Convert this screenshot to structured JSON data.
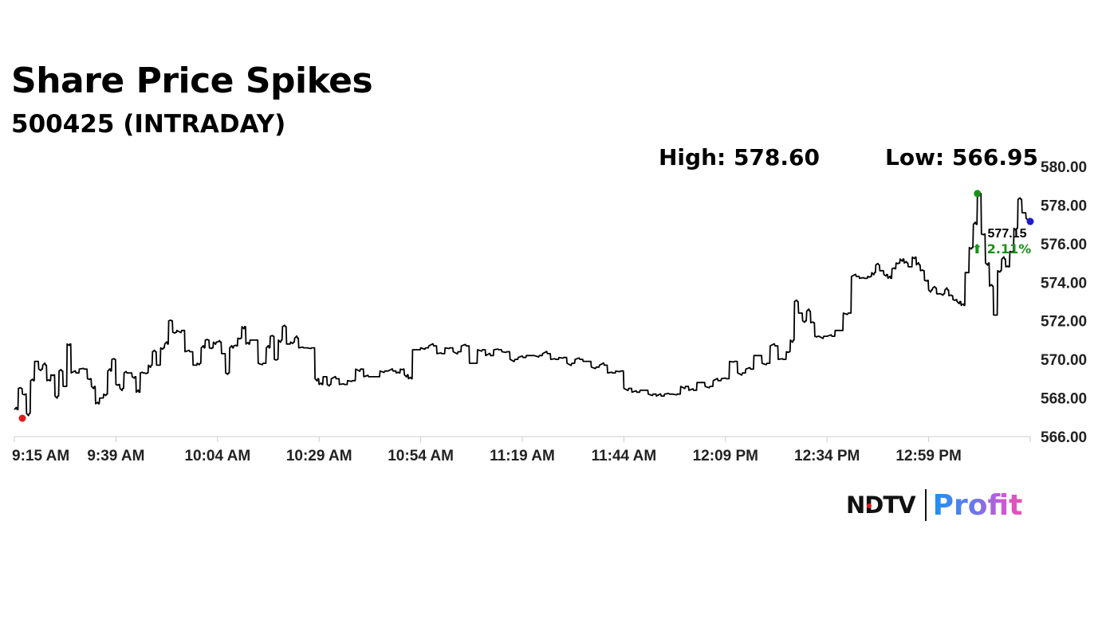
{
  "header": {
    "title": "Share Price Spikes",
    "subtitle": "500425 (INTRADAY)",
    "high_label": "High: 578.60",
    "low_label": "Low: 566.95"
  },
  "annotation": {
    "last_price": "577.15",
    "change": "⬆ 2.11%"
  },
  "brand": {
    "left": "NDTV",
    "right": "Profit"
  },
  "colors": {
    "line": "#000000",
    "high_marker": "#1a8f1a",
    "low_marker": "#e01b1b",
    "last_marker": "#1c1ccf",
    "change_text": "#1a8f1a",
    "axis": "#cccccc"
  },
  "chart_data": {
    "type": "line",
    "x_tick_labels": [
      "9:15 AM",
      "9:39 AM",
      "10:04 AM",
      "10:29 AM",
      "10:54 AM",
      "11:19 AM",
      "11:44 AM",
      "12:09 PM",
      "12:34 PM",
      "12:59 PM"
    ],
    "y_tick_labels": [
      "566.00",
      "568.00",
      "570.00",
      "572.00",
      "574.00",
      "576.00",
      "578.00",
      "580.00"
    ],
    "ylim": [
      566,
      580
    ],
    "xlim_minutes_after_915": [
      0,
      250
    ],
    "grid": false,
    "y_axis_side": "right",
    "series": [
      {
        "x": [
          0,
          1,
          2,
          3,
          4,
          5,
          6,
          7,
          8,
          9,
          10,
          11,
          12,
          13,
          14,
          16,
          18,
          19,
          20,
          21,
          22,
          23,
          24,
          25,
          26,
          27,
          28,
          29,
          30,
          31,
          32,
          33,
          34,
          35,
          36,
          37,
          38,
          39,
          40,
          42,
          44,
          45,
          46,
          47,
          48,
          49,
          50,
          51,
          52,
          53,
          54,
          55,
          56,
          57,
          58,
          60,
          62,
          63,
          64,
          65,
          66,
          67,
          68,
          69,
          70,
          72,
          74,
          75,
          76,
          77,
          78,
          80,
          82,
          84,
          86,
          88,
          90,
          92,
          94,
          95,
          96,
          97,
          98,
          100,
          102,
          104,
          106,
          108,
          110,
          112,
          114,
          116,
          118,
          120,
          122,
          124,
          126,
          128,
          130,
          132,
          134,
          136,
          138,
          140,
          142,
          144,
          146,
          148,
          150,
          152,
          154,
          156,
          158,
          160,
          162,
          164,
          166,
          168,
          170,
          172,
          174,
          176,
          178,
          180,
          182,
          184,
          186,
          188,
          190,
          191,
          192,
          193,
          194,
          195,
          196,
          197,
          198,
          200,
          202,
          204,
          206,
          208,
          210,
          211,
          212,
          213,
          214,
          215,
          216,
          217,
          218,
          219,
          220,
          221,
          222,
          223,
          224,
          225,
          226,
          227,
          228,
          229,
          230,
          231,
          232,
          233,
          234,
          235,
          236,
          237,
          238,
          239,
          240,
          241,
          242,
          243,
          244,
          245,
          246,
          247,
          248,
          249,
          250
        ],
        "y": [
          567.4,
          568.5,
          568.2,
          567.2,
          568.9,
          569.9,
          569.5,
          569.7,
          568.9,
          569.2,
          568.1,
          569.4,
          568.6,
          570.8,
          569.3,
          569.5,
          569.0,
          568.6,
          567.7,
          568.0,
          568.2,
          569.4,
          570.0,
          568.7,
          568.5,
          569.3,
          569.3,
          569.1,
          568.3,
          569.3,
          569.3,
          569.7,
          570.4,
          569.7,
          570.6,
          570.8,
          572.0,
          571.4,
          571.5,
          570.4,
          569.7,
          569.8,
          570.6,
          571.0,
          570.6,
          570.9,
          570.9,
          570.3,
          569.3,
          570.6,
          570.7,
          571.1,
          571.7,
          570.8,
          571.0,
          569.8,
          570.6,
          571.2,
          570.0,
          571.0,
          571.7,
          570.8,
          570.9,
          571.1,
          570.6,
          570.6,
          569.0,
          568.7,
          569.1,
          568.7,
          569.0,
          568.7,
          568.9,
          569.5,
          569.1,
          569.1,
          569.4,
          569.4,
          569.3,
          569.5,
          569.2,
          569.0,
          570.5,
          570.6,
          570.7,
          570.3,
          570.6,
          570.4,
          570.7,
          569.8,
          570.5,
          570.2,
          570.5,
          570.4,
          570.0,
          570.1,
          570.2,
          570.2,
          570.3,
          570.0,
          570.1,
          569.8,
          570.0,
          569.9,
          569.6,
          569.7,
          569.3,
          569.4,
          568.5,
          568.3,
          568.4,
          568.2,
          568.1,
          568.2,
          568.2,
          568.6,
          568.4,
          568.8,
          568.6,
          568.9,
          569.0,
          569.9,
          569.3,
          569.5,
          570.2,
          569.8,
          570.7,
          570.0,
          570.4,
          571.0,
          573.0,
          572.4,
          572.0,
          572.5,
          571.9,
          571.2,
          571.2,
          571.2,
          571.5,
          572.4,
          574.3,
          574.2,
          574.3,
          574.5,
          574.9,
          574.6,
          574.4,
          574.2,
          574.7,
          575.0,
          575.2,
          575.0,
          574.8,
          575.3,
          574.9,
          574.6,
          574.1,
          573.6,
          573.7,
          573.4,
          573.4,
          573.6,
          573.3,
          573.1,
          573.0,
          572.8,
          574.5,
          575.8,
          577.0,
          578.6,
          576.5,
          575.0,
          573.8,
          572.3,
          574.6,
          575.2,
          574.8,
          575.6,
          576.8,
          578.3,
          577.6,
          577.3,
          577.15
        ]
      }
    ],
    "markers": {
      "high": 578.6,
      "low": 566.95,
      "last": 577.15
    }
  }
}
